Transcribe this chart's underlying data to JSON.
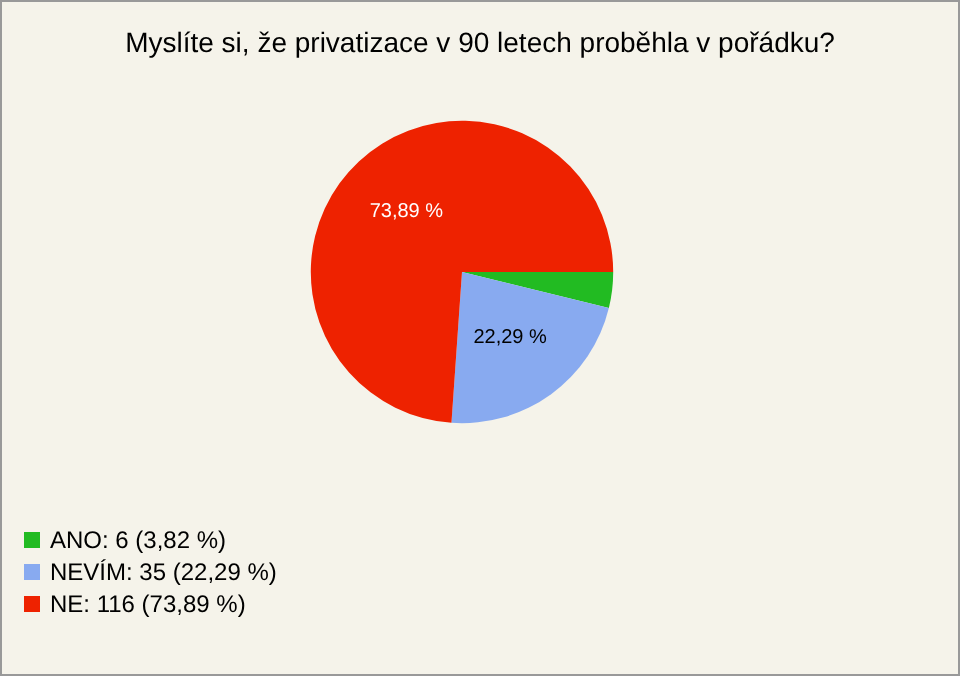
{
  "chart_data": {
    "type": "pie",
    "title": "Myslíte si, že privatizace v 90 letech proběhla v pořádku?",
    "categories": [
      "ANO: 6 (3,82 %)",
      "NEVÍM: 35 (22,29 %)",
      "NE: 116 (73,89 %)"
    ],
    "values": [
      3.82,
      22.29,
      73.89
    ],
    "colors": [
      "#22bb22",
      "#88aaf0",
      "#ee2200"
    ],
    "value_labels": [
      null,
      "22,29 %",
      "73,89 %"
    ],
    "legend": "bottom left"
  }
}
